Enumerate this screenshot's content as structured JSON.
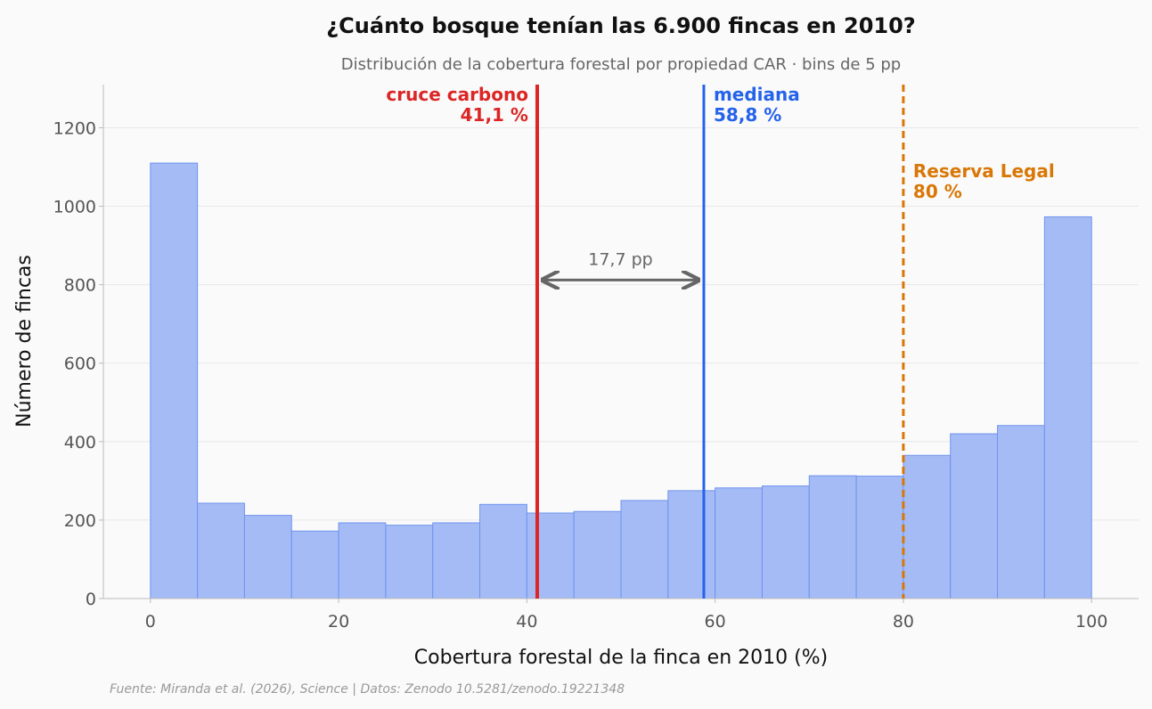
{
  "chart_data": {
    "type": "bar",
    "title": "¿Cuánto bosque tenían las 6.900 fincas en 2010?",
    "subtitle": "Distribución de la cobertura forestal por propiedad CAR · bins de 5 pp",
    "xlabel": "Cobertura forestal de la finca en 2010 (%)",
    "ylabel": "Número de fincas",
    "xlim": [
      -5,
      105
    ],
    "ylim": [
      0,
      1310
    ],
    "x_ticks": [
      0,
      20,
      40,
      60,
      80,
      100
    ],
    "y_ticks": [
      0,
      200,
      400,
      600,
      800,
      1000,
      1200
    ],
    "grid": "horizontal",
    "bin_width": 5,
    "bins": [
      0,
      5,
      10,
      15,
      20,
      25,
      30,
      35,
      40,
      45,
      50,
      55,
      60,
      65,
      70,
      75,
      80,
      85,
      90,
      95
    ],
    "values": [
      1110,
      243,
      212,
      172,
      193,
      187,
      193,
      240,
      218,
      222,
      250,
      275,
      282,
      287,
      313,
      312,
      365,
      420,
      441,
      973
    ],
    "bar_color": "#a4bbf5",
    "bar_edge_color": "#6f93ee",
    "reference_lines": [
      {
        "x": 41.1,
        "label": "cruce carbono",
        "value_label": "41,1 %",
        "color": "#dc2626",
        "style": "solid",
        "label_side": "left"
      },
      {
        "x": 58.8,
        "label": "mediana",
        "value_label": "58,8 %",
        "color": "#2563eb",
        "style": "solid",
        "label_side": "right"
      },
      {
        "x": 80,
        "label": "Reserva Legal",
        "value_label": "80 %",
        "color": "#d97706",
        "style": "dashed",
        "label_side": "right"
      }
    ],
    "gap_annotation": {
      "from": 41.1,
      "to": 58.8,
      "y": 812,
      "label": "17,7 pp"
    }
  },
  "source": "Fuente: Miranda et al. (2026), Science | Datos: Zenodo 10.5281/zenodo.19221348"
}
